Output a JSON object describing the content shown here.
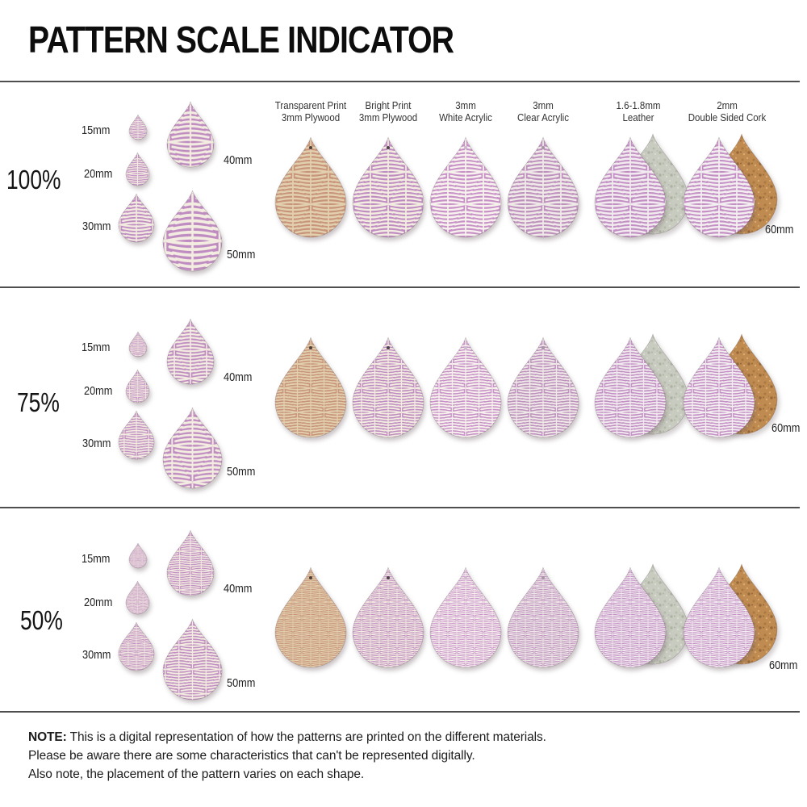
{
  "title": "PATTERN SCALE INDICATOR",
  "rows": [
    {
      "scale_label": "100%",
      "scale": 1.0,
      "right_label": "60mm"
    },
    {
      "scale_label": "75%",
      "scale": 0.75,
      "right_label": "60mm"
    },
    {
      "scale_label": "50%",
      "scale": 0.5,
      "right_label": "60mm"
    }
  ],
  "sizes": [
    {
      "label": "15mm"
    },
    {
      "label": "20mm"
    },
    {
      "label": "30mm"
    },
    {
      "label": "40mm"
    },
    {
      "label": "50mm"
    }
  ],
  "materials": [
    {
      "id": "transparent-plywood",
      "label_line1": "Transparent Print",
      "label_line2": "3mm Plywood",
      "bg": "#c79379",
      "fg": "#e2cfae",
      "hole": "#4d4038"
    },
    {
      "id": "bright-plywood",
      "label_line1": "Bright Print",
      "label_line2": "3mm Plywood",
      "bg": "#bf8cc1",
      "fg": "#f3ece1",
      "hole": "#4d4048"
    },
    {
      "id": "white-acrylic",
      "label_line1": "3mm",
      "label_line2": "White Acrylic",
      "bg": "#c791c8",
      "fg": "#f7f2ed",
      "hole": "#cdbbcd"
    },
    {
      "id": "clear-acrylic",
      "label_line1": "3mm",
      "label_line2": "Clear Acrylic",
      "bg": "#bd90bd",
      "fg": "#efe9e8",
      "hole": "#a894a6"
    },
    {
      "id": "leather",
      "label_line1": "1.6-1.8mm",
      "label_line2": "Leather",
      "bg": "#c28fc4",
      "fg": "#f1eaee",
      "back": "leather"
    },
    {
      "id": "cork",
      "label_line1": "2mm",
      "label_line2": "Double Sided Cork",
      "bg": "#c48fc5",
      "fg": "#f3eef0",
      "back": "cork"
    }
  ],
  "textures": {
    "leather": {
      "bg": "#c8cbc0",
      "dots": [
        "#b6baaa",
        "#dadcd2",
        "#aeb2a2"
      ]
    },
    "cork": {
      "bg": "#c08b50",
      "dots": [
        "#a87840",
        "#d9ac72",
        "#96683a"
      ]
    }
  },
  "note": {
    "label": "NOTE:",
    "line1": "This is a digital representation of how the patterns are printed on the different materials.",
    "line2": "Please be aware there are some characteristics that can't be represented digitally.",
    "line3": "Also note, the placement of the pattern varies on each shape."
  }
}
